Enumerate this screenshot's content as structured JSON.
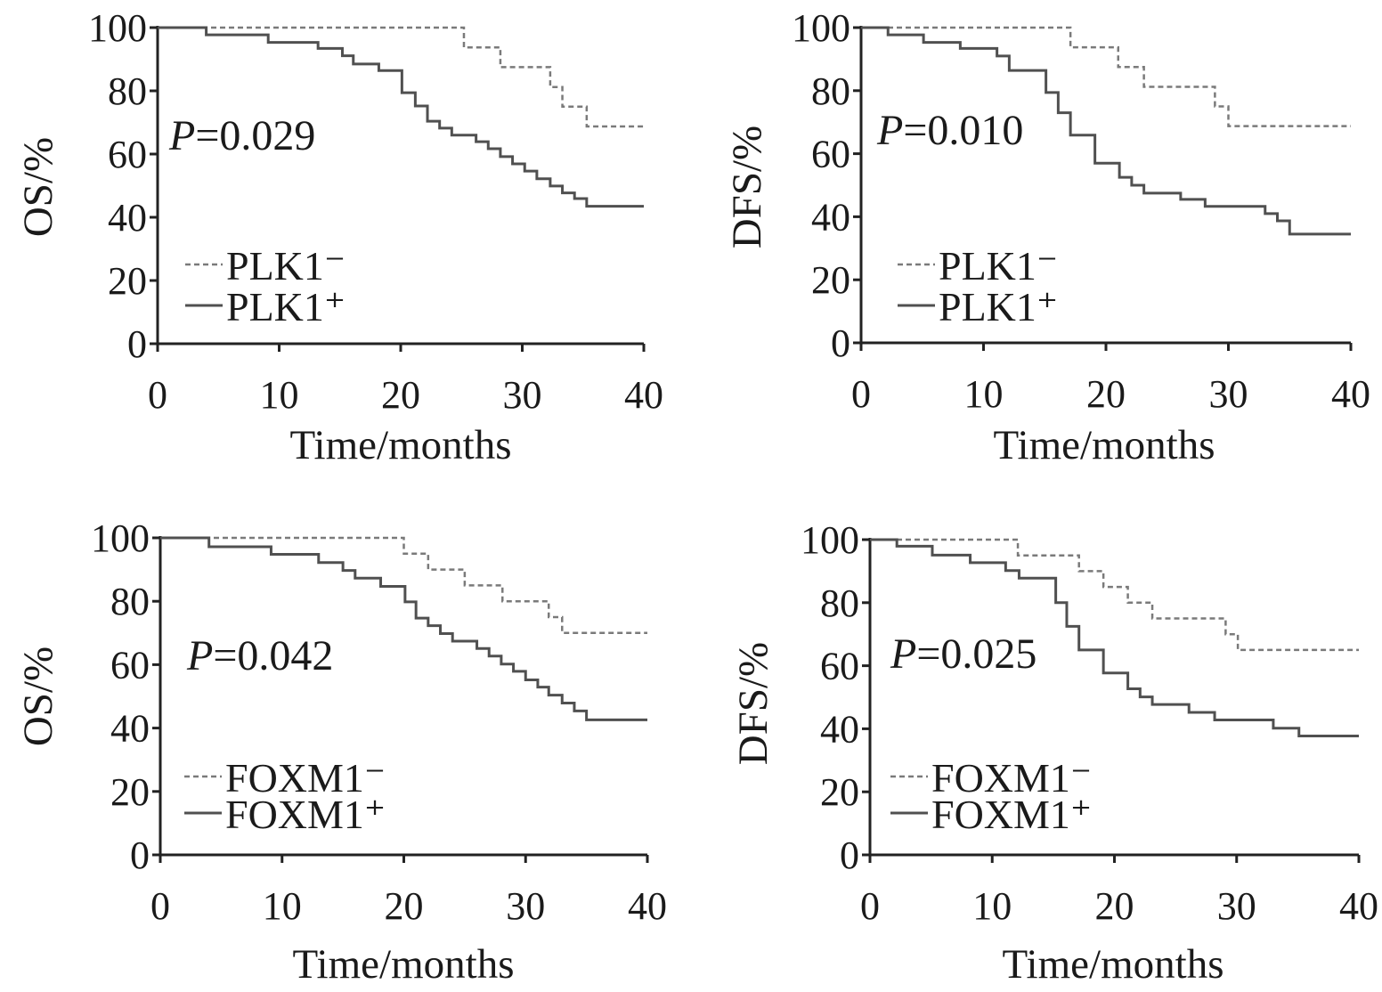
{
  "chart_data": [
    {
      "type": "line",
      "subtype": "kaplan-meier step",
      "xlabel": "Time/months",
      "ylabel": "OS/%",
      "xlim": [
        0,
        40
      ],
      "ylim": [
        0,
        100
      ],
      "xticks": [
        "0",
        "10",
        "20",
        "30",
        "40"
      ],
      "yticks": [
        "0",
        "20",
        "40",
        "60",
        "80",
        "100"
      ],
      "annotation": {
        "italic": "P",
        "text": "=0.029"
      },
      "legend": "left",
      "series": [
        {
          "name": "PLK1⁻",
          "style": "dashed",
          "color": "#7a7a7a",
          "steps": [
            [
              0,
              100
            ],
            [
              25.2,
              93.75
            ],
            [
              28.2,
              87.5
            ],
            [
              32.3,
              81.2
            ],
            [
              33.3,
              75
            ],
            [
              35.3,
              68.75
            ],
            [
              40,
              68.75
            ]
          ]
        },
        {
          "name": "PLK1⁺",
          "style": "solid",
          "color": "#505050",
          "steps": [
            [
              0,
              100
            ],
            [
              4,
              97.7
            ],
            [
              9.1,
              95.3
            ],
            [
              13.2,
              93.4
            ],
            [
              15.2,
              91.1
            ],
            [
              16.1,
              88.5
            ],
            [
              18.2,
              86.4
            ],
            [
              20.1,
              79.4
            ],
            [
              21.2,
              75.2
            ],
            [
              22.2,
              70.4
            ],
            [
              23.2,
              68.2
            ],
            [
              24.2,
              66
            ],
            [
              26.2,
              63.9
            ],
            [
              27.2,
              61.7
            ],
            [
              28.2,
              59.2
            ],
            [
              29.2,
              56.9
            ],
            [
              30.2,
              54.6
            ],
            [
              31.2,
              52.2
            ],
            [
              32.3,
              49.9
            ],
            [
              33.3,
              47.7
            ],
            [
              34.3,
              45.9
            ],
            [
              35.3,
              43.5
            ],
            [
              40,
              43.5
            ]
          ]
        }
      ]
    },
    {
      "type": "line",
      "subtype": "kaplan-meier step",
      "xlabel": "Time/months",
      "ylabel": "DFS/%",
      "xlim": [
        0,
        40
      ],
      "ylim": [
        0,
        100
      ],
      "xticks": [
        "0",
        "10",
        "20",
        "30",
        "40"
      ],
      "yticks": [
        "0",
        "20",
        "40",
        "60",
        "80",
        "100"
      ],
      "annotation": {
        "italic": "P",
        "text": "=0.010"
      },
      "legend": "left",
      "series": [
        {
          "name": "PLK1⁻",
          "style": "dashed",
          "color": "#7a7a7a",
          "steps": [
            [
              0,
              100
            ],
            [
              17.1,
              93.75
            ],
            [
              21,
              87.5
            ],
            [
              23.1,
              81.2
            ],
            [
              28.9,
              75
            ],
            [
              30,
              68.75
            ],
            [
              40,
              68.75
            ]
          ]
        },
        {
          "name": "PLK1⁺",
          "style": "solid",
          "color": "#505050",
          "steps": [
            [
              0,
              100
            ],
            [
              2.2,
              97.7
            ],
            [
              5.1,
              95.3
            ],
            [
              8.1,
              93.4
            ],
            [
              11.1,
              91
            ],
            [
              12.1,
              86.4
            ],
            [
              15.1,
              79.4
            ],
            [
              16.1,
              73
            ],
            [
              17.1,
              65.9
            ],
            [
              19.1,
              57
            ],
            [
              21.1,
              52.5
            ],
            [
              22.1,
              50
            ],
            [
              23.1,
              47.5
            ],
            [
              26.1,
              45.5
            ],
            [
              28.1,
              43.3
            ],
            [
              33,
              41
            ],
            [
              34,
              38.7
            ],
            [
              35,
              34.5
            ],
            [
              40,
              34.5
            ]
          ]
        }
      ]
    },
    {
      "type": "line",
      "subtype": "kaplan-meier step",
      "xlabel": "Time/months",
      "ylabel": "OS/%",
      "xlim": [
        0,
        40
      ],
      "ylim": [
        0,
        100
      ],
      "xticks": [
        "0",
        "10",
        "20",
        "30",
        "40"
      ],
      "yticks": [
        "0",
        "20",
        "40",
        "60",
        "80",
        "100"
      ],
      "annotation": {
        "italic": "P",
        "text": "=0.042"
      },
      "legend": "left",
      "series": [
        {
          "name": "FOXM1⁻",
          "style": "dashed",
          "color": "#7a7a7a",
          "steps": [
            [
              0,
              100
            ],
            [
              20,
              95
            ],
            [
              22,
              90
            ],
            [
              25,
              85
            ],
            [
              28.1,
              80
            ],
            [
              31.9,
              75
            ],
            [
              33,
              70
            ],
            [
              40,
              70
            ]
          ]
        },
        {
          "name": "FOXM1⁺",
          "style": "solid",
          "color": "#505050",
          "steps": [
            [
              0,
              100
            ],
            [
              4,
              97.2
            ],
            [
              9.1,
              94.8
            ],
            [
              13,
              92.2
            ],
            [
              15,
              89.7
            ],
            [
              16,
              87.3
            ],
            [
              18.1,
              84.7
            ],
            [
              20.1,
              79.8
            ],
            [
              21,
              74.7
            ],
            [
              22,
              72.3
            ],
            [
              23,
              69.8
            ],
            [
              24,
              67.4
            ],
            [
              26,
              65.1
            ],
            [
              27,
              62.7
            ],
            [
              28,
              60.2
            ],
            [
              29,
              57.9
            ],
            [
              30,
              55.2
            ],
            [
              31,
              52.9
            ],
            [
              31.9,
              50.4
            ],
            [
              33,
              47.9
            ],
            [
              34,
              45.4
            ],
            [
              35,
              42.6
            ],
            [
              40,
              42.6
            ]
          ]
        }
      ]
    },
    {
      "type": "line",
      "subtype": "kaplan-meier step",
      "xlabel": "Time/months",
      "ylabel": "DFS/%",
      "xlim": [
        0,
        40
      ],
      "ylim": [
        0,
        100
      ],
      "xticks": [
        "0",
        "10",
        "20",
        "30",
        "40"
      ],
      "yticks": [
        "0",
        "20",
        "40",
        "60",
        "80",
        "100"
      ],
      "annotation": {
        "italic": "P",
        "text": "=0.025"
      },
      "legend": "left",
      "series": [
        {
          "name": "FOXM1⁻",
          "style": "dashed",
          "color": "#7a7a7a",
          "steps": [
            [
              0,
              100
            ],
            [
              12.1,
              95
            ],
            [
              17.1,
              90
            ],
            [
              19.1,
              85
            ],
            [
              21.1,
              80
            ],
            [
              23.1,
              75
            ],
            [
              29.1,
              70
            ],
            [
              30.1,
              65
            ],
            [
              40,
              65
            ]
          ]
        },
        {
          "name": "FOXM1⁺",
          "style": "solid",
          "color": "#505050",
          "steps": [
            [
              0,
              100
            ],
            [
              2.2,
              97.9
            ],
            [
              5.1,
              95.1
            ],
            [
              8.2,
              92.7
            ],
            [
              11.1,
              90.2
            ],
            [
              12.2,
              87.8
            ],
            [
              15.2,
              80
            ],
            [
              16.1,
              72.5
            ],
            [
              17.1,
              65
            ],
            [
              19.1,
              57.7
            ],
            [
              21.1,
              52.7
            ],
            [
              22.1,
              50.1
            ],
            [
              23.1,
              47.7
            ],
            [
              26.1,
              45.2
            ],
            [
              28.2,
              42.8
            ],
            [
              33,
              40.2
            ],
            [
              35.1,
              37.7
            ],
            [
              40,
              37.7
            ]
          ]
        }
      ]
    }
  ]
}
